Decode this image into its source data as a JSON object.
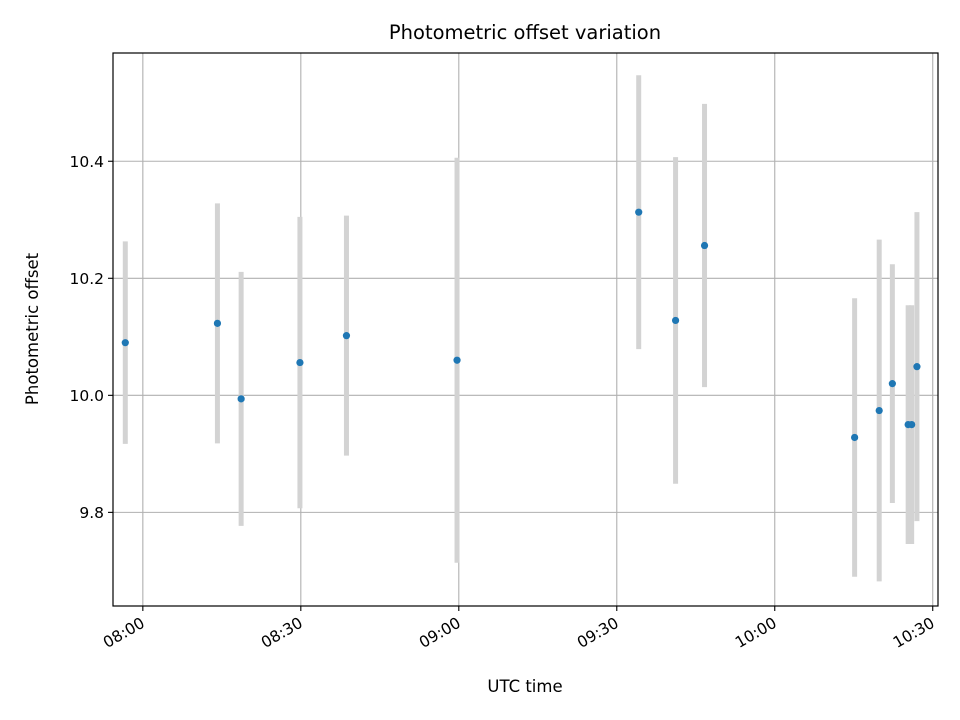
{
  "chart_data": {
    "type": "scatter",
    "title": "Photometric offset variation",
    "xlabel": "UTC time",
    "ylabel": "Photometric offset",
    "grid": true,
    "legend": "none",
    "xlim": [
      "07:54:20",
      "10:31:00"
    ],
    "ylim": [
      9.64,
      10.585
    ],
    "x_ticks": [
      "08:00",
      "08:30",
      "09:00",
      "09:30",
      "10:00",
      "10:30"
    ],
    "y_ticks": [
      "9.8",
      "10.0",
      "10.2",
      "10.4"
    ],
    "colors": {
      "point": "#1f77b4",
      "errorbar": "#d3d3d3",
      "grid": "#b0b0b0"
    },
    "points": [
      {
        "x": "07:56:40",
        "y": 10.09,
        "err": 0.173
      },
      {
        "x": "08:14:10",
        "y": 10.123,
        "err": 0.205
      },
      {
        "x": "08:18:40",
        "y": 9.994,
        "err": 0.217
      },
      {
        "x": "08:29:50",
        "y": 10.056,
        "err": 0.249
      },
      {
        "x": "08:38:40",
        "y": 10.102,
        "err": 0.205
      },
      {
        "x": "08:59:40",
        "y": 10.06,
        "err": 0.346
      },
      {
        "x": "09:34:10",
        "y": 10.313,
        "err": 0.234
      },
      {
        "x": "09:41:10",
        "y": 10.128,
        "err": 0.279
      },
      {
        "x": "09:46:40",
        "y": 10.256,
        "err": 0.242
      },
      {
        "x": "10:15:10",
        "y": 9.928,
        "err": 0.238
      },
      {
        "x": "10:19:50",
        "y": 9.974,
        "err": 0.292
      },
      {
        "x": "10:22:20",
        "y": 10.02,
        "err": 0.204
      },
      {
        "x": "10:25:20",
        "y": 9.95,
        "err": 0.204
      },
      {
        "x": "10:26:00",
        "y": 9.95,
        "err": 0.204
      },
      {
        "x": "10:27:00",
        "y": 10.049,
        "err": 0.264
      }
    ]
  }
}
